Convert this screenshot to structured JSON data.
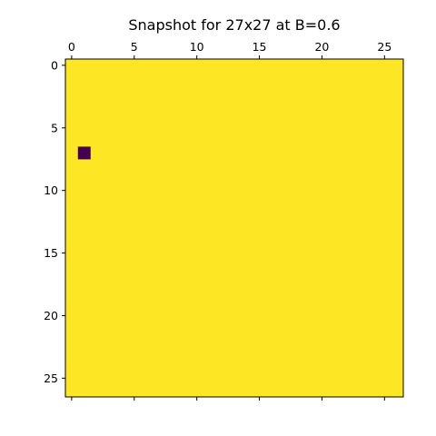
{
  "chart_data": {
    "type": "heatmap",
    "title": "Snapshot for 27x27 at B=0.6",
    "xlabel": "",
    "ylabel": "",
    "rows": 27,
    "cols": 27,
    "default_value": 1,
    "cells": [
      {
        "row": 7,
        "col": 1,
        "value": 0
      }
    ],
    "colormap": {
      "0": "#440154",
      "1": "#fde725"
    },
    "x_ticks": [
      0,
      5,
      10,
      15,
      20,
      25
    ],
    "y_ticks": [
      0,
      5,
      10,
      15,
      20,
      25
    ],
    "x_ticks_position": "top",
    "y_inverted": true,
    "grid": false,
    "legend": "none"
  }
}
